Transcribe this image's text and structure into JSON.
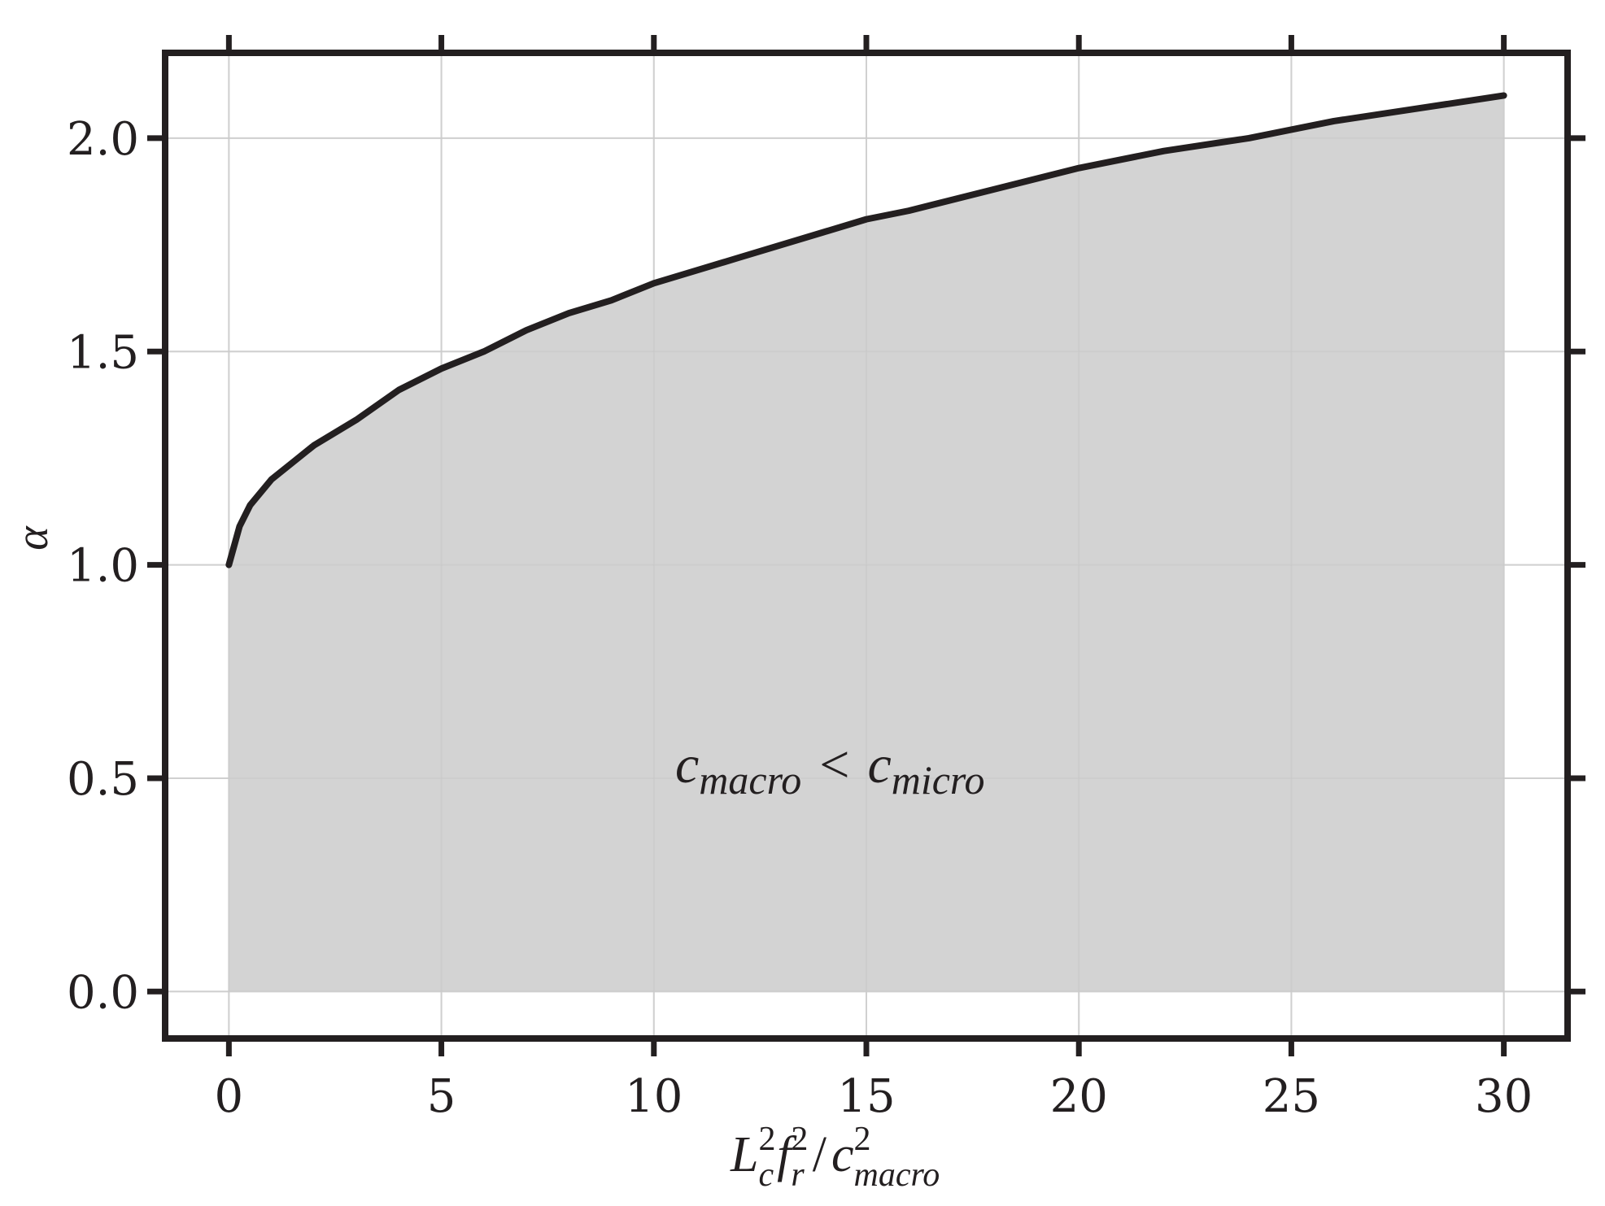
{
  "chart_data": {
    "type": "area",
    "title": "",
    "x": [
      0,
      0.25,
      0.5,
      1,
      1.5,
      2,
      3,
      4,
      5,
      6,
      7,
      8,
      9,
      10,
      12,
      14,
      15,
      16,
      18,
      20,
      22,
      24,
      25,
      26,
      28,
      30
    ],
    "series": [
      {
        "values": [
          1.0,
          1.09,
          1.14,
          1.2,
          1.24,
          1.28,
          1.34,
          1.41,
          1.46,
          1.5,
          1.55,
          1.59,
          1.62,
          1.66,
          1.72,
          1.78,
          1.81,
          1.83,
          1.88,
          1.93,
          1.97,
          2.0,
          2.02,
          2.04,
          2.07,
          2.1
        ],
        "color": "#231f20",
        "fill": "#d3d3d3"
      }
    ],
    "xlim": [
      -1.5,
      31.5
    ],
    "ylim": [
      -0.11,
      2.2
    ],
    "xticks": [
      0,
      5,
      10,
      15,
      20,
      25,
      30
    ],
    "xtick_labels": [
      "0",
      "5",
      "10",
      "15",
      "20",
      "25",
      "30"
    ],
    "yticks": [
      0.0,
      0.5,
      1.0,
      1.5,
      2.0
    ],
    "ytick_labels": [
      "0.0",
      "0.5",
      "1.0",
      "1.5",
      "2.0"
    ],
    "grid": true,
    "legend": "none",
    "xlabel": {
      "L": "L",
      "c": "c",
      "f": "f",
      "r": "r",
      "slash": "/",
      "cm": "c",
      "macro": "macro",
      "sq": "2"
    },
    "ylabel": "α",
    "annotation": {
      "c1": "c",
      "sub1": "macro",
      "op": "<",
      "c2": "c",
      "sub2": "micro"
    }
  }
}
